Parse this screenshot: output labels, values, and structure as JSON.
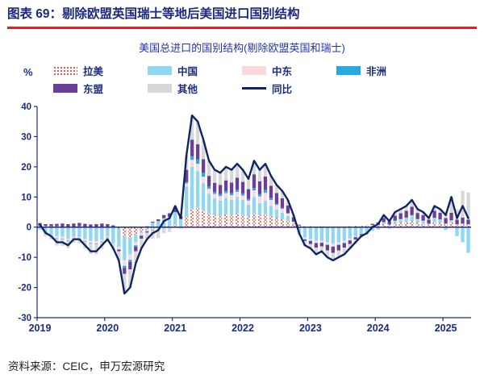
{
  "header": {
    "title": "图表 69：剔除欧盟英国瑞士等地后美国进口国别结构"
  },
  "footer": {
    "source": "资料来源：CEIC，申万宏源研究"
  },
  "colors": {
    "navy": "#1c2d7e",
    "header_navy": "#1b2a80",
    "title_blue": "#2333ae",
    "red_rule": "#ee1c25",
    "footer_text": "#1f1f1f",
    "line_navy": "#0f2464"
  },
  "chart_data": {
    "type": "bar",
    "subtype": "stacked-bar-with-line",
    "title": "美国总进口的国别结构(剔除欧盟英国和瑞士)",
    "ylabel": "%",
    "ylim": [
      -30,
      40
    ],
    "ytick_step": 10,
    "grid": false,
    "legend_position": "top",
    "x_start": "2019-01",
    "x_freq": "monthly",
    "x_ticks": {
      "labels": [
        "2019",
        "2020",
        "2021",
        "2022",
        "2023",
        "2024",
        "2025"
      ],
      "month_index": [
        0,
        12,
        24,
        36,
        48,
        60,
        72
      ]
    },
    "series": [
      {
        "name": "拉美",
        "color": "#e0564e",
        "pattern": "dots",
        "values": [
          0.5,
          0.4,
          0.3,
          0.3,
          0.2,
          0.1,
          0.2,
          0.3,
          0.2,
          0.1,
          0.1,
          0.2,
          0.2,
          0.1,
          -0.5,
          -3.0,
          -3.5,
          -2.5,
          -1.5,
          -1.0,
          -0.5,
          -0.3,
          0.2,
          0.4,
          0.8,
          0.2,
          3.5,
          6.0,
          6.5,
          5.5,
          4.5,
          4.0,
          3.8,
          4.2,
          4.0,
          4.5,
          4.0,
          3.5,
          4.5,
          4.0,
          4.3,
          3.5,
          3.0,
          2.6,
          2.2,
          1.3,
          0.5,
          0.3,
          0.3,
          0.2,
          0.3,
          0.1,
          0.0,
          0.1,
          0.2,
          0.3,
          0.4,
          0.5,
          0.6,
          0.7,
          0.7,
          1.0,
          0.8,
          1.2,
          1.4,
          1.6,
          2.0,
          1.4,
          1.2,
          0.8,
          1.6,
          1.4,
          1.0,
          1.5,
          0.8,
          1.0,
          0.8
        ]
      },
      {
        "name": "中国",
        "color": "#8fd7f3",
        "values": [
          -0.5,
          -2.0,
          -2.5,
          -3.0,
          -3.2,
          -3.8,
          -3.2,
          -3.4,
          -4.0,
          -4.5,
          -4.6,
          -4.2,
          -3.0,
          -5.5,
          -6.0,
          -8.0,
          -5.5,
          -2.5,
          -0.5,
          0.5,
          1.5,
          2.0,
          2.8,
          3.0,
          4.0,
          2.5,
          10.0,
          14.0,
          12.0,
          9.0,
          6.5,
          5.5,
          5.0,
          5.5,
          5.0,
          5.5,
          5.0,
          4.0,
          5.5,
          4.0,
          4.5,
          3.5,
          2.8,
          2.2,
          1.5,
          0.2,
          -2.0,
          -3.5,
          -4.0,
          -4.5,
          -4.5,
          -5.0,
          -5.5,
          -5.0,
          -4.5,
          -3.8,
          -3.0,
          -2.2,
          -1.8,
          -1.2,
          -0.8,
          0.5,
          -0.5,
          0.8,
          1.0,
          1.2,
          1.5,
          1.0,
          0.8,
          0.3,
          1.2,
          1.0,
          -1.0,
          0.5,
          -3.0,
          -5.0,
          -8.5
        ]
      },
      {
        "name": "中东",
        "color": "#f8dade",
        "values": [
          -0.2,
          -0.3,
          -0.4,
          -0.7,
          -0.6,
          -0.6,
          -0.5,
          -0.5,
          -0.6,
          -0.8,
          -0.9,
          -0.6,
          -0.3,
          -0.4,
          -0.8,
          -1.8,
          -1.8,
          -1.0,
          -0.7,
          -0.3,
          -0.3,
          -0.4,
          -0.2,
          -0.1,
          0.1,
          -0.1,
          1.0,
          2.3,
          2.5,
          2.2,
          1.7,
          1.5,
          1.5,
          1.6,
          1.6,
          1.7,
          1.5,
          1.3,
          2.2,
          2.2,
          2.6,
          2.0,
          1.6,
          1.3,
          0.8,
          0.3,
          -0.2,
          -0.5,
          -0.5,
          -0.7,
          -0.6,
          -0.8,
          -0.9,
          -0.8,
          -0.7,
          -0.5,
          -0.3,
          -0.1,
          -0.1,
          0.0,
          0.0,
          0.1,
          0.0,
          0.1,
          0.2,
          0.2,
          0.3,
          0.2,
          0.1,
          0.0,
          0.2,
          0.1,
          0.1,
          0.2,
          0.1,
          0.1,
          0.1
        ]
      },
      {
        "name": "非洲",
        "color": "#2aa9e1",
        "values": [
          -0.1,
          -0.1,
          -0.1,
          -0.2,
          -0.2,
          -0.2,
          -0.1,
          -0.1,
          -0.2,
          -0.2,
          -0.2,
          -0.2,
          -0.1,
          -0.1,
          -0.2,
          -0.7,
          -0.7,
          -0.5,
          -0.3,
          -0.2,
          -0.2,
          -0.1,
          -0.1,
          -0.1,
          0.1,
          0.0,
          0.5,
          1.2,
          1.5,
          1.3,
          0.8,
          0.7,
          0.7,
          0.7,
          0.7,
          0.7,
          0.7,
          0.5,
          0.8,
          0.8,
          0.9,
          0.7,
          0.4,
          0.3,
          0.2,
          0.0,
          0.0,
          -0.1,
          -0.1,
          -0.1,
          -0.1,
          -0.1,
          -0.1,
          -0.1,
          -0.1,
          -0.1,
          0.0,
          0.0,
          0.0,
          0.0,
          0.1,
          0.1,
          0.1,
          0.1,
          0.1,
          0.2,
          0.2,
          0.1,
          0.1,
          0.1,
          0.1,
          0.1,
          0.1,
          0.1,
          0.1,
          0.1,
          0.1
        ]
      },
      {
        "name": "东盟",
        "color": "#6b3f98",
        "values": [
          0.8,
          0.6,
          0.7,
          0.8,
          1.0,
          0.9,
          1.0,
          1.1,
          0.9,
          0.8,
          0.9,
          1.0,
          0.8,
          0.5,
          -0.5,
          -2.0,
          -2.5,
          -1.5,
          -0.8,
          -0.3,
          0.3,
          0.6,
          1.0,
          1.2,
          1.5,
          0.8,
          4.0,
          5.5,
          5.0,
          4.5,
          3.5,
          3.0,
          3.0,
          3.5,
          3.5,
          4.0,
          3.8,
          3.3,
          4.5,
          4.2,
          4.5,
          4.0,
          3.5,
          3.2,
          2.5,
          1.5,
          0.3,
          -0.5,
          -1.0,
          -1.5,
          -1.2,
          -1.8,
          -2.0,
          -1.8,
          -1.5,
          -1.2,
          -0.8,
          -0.4,
          0.0,
          0.4,
          0.8,
          1.3,
          1.0,
          1.6,
          1.9,
          2.2,
          2.8,
          2.0,
          1.8,
          1.3,
          2.3,
          2.2,
          1.8,
          2.5,
          1.5,
          2.0,
          1.5
        ]
      },
      {
        "name": "其他",
        "color": "#d8d8d8",
        "values": [
          0.4,
          -0.6,
          -1.0,
          -2.2,
          -2.2,
          -2.4,
          -1.4,
          -1.4,
          -2.3,
          -3.4,
          -3.3,
          -2.2,
          -1.6,
          -1.6,
          -3.0,
          -6.5,
          -6.0,
          -4.0,
          -3.2,
          -2.7,
          -2.8,
          -2.8,
          -1.7,
          -1.4,
          0.5,
          -0.4,
          5.0,
          8.0,
          7.5,
          6.5,
          5.0,
          4.3,
          4.0,
          4.5,
          4.2,
          4.6,
          4.0,
          3.4,
          4.5,
          3.8,
          4.2,
          3.3,
          2.7,
          2.4,
          1.8,
          0.7,
          -0.6,
          -1.7,
          -1.7,
          -2.4,
          -1.9,
          -2.4,
          -2.5,
          -2.4,
          -2.4,
          -1.7,
          -1.3,
          -0.8,
          -0.7,
          0.1,
          0.2,
          1.0,
          0.6,
          1.2,
          1.4,
          1.6,
          2.2,
          1.3,
          1.0,
          0.5,
          1.6,
          1.2,
          2.0,
          5.2,
          3.5,
          8.8,
          9.0
        ]
      }
    ],
    "line": {
      "name": "同比",
      "color": "#0f2464",
      "values": [
        0.9,
        -1.9,
        -3.0,
        -5.0,
        -5.0,
        -6.0,
        -4.0,
        -4.0,
        -6.0,
        -8.0,
        -8.0,
        -6.0,
        -4.0,
        -7.0,
        -11.0,
        -22.0,
        -20.0,
        -12.0,
        -7.0,
        -4.0,
        -2.0,
        -1.0,
        2.0,
        3.0,
        7.0,
        3.0,
        24.0,
        37.0,
        35.0,
        29.0,
        22.0,
        19.0,
        18.0,
        20.0,
        19.0,
        21.0,
        19.0,
        16.0,
        22.0,
        19.0,
        21.0,
        17.0,
        14.0,
        12.0,
        9.0,
        4.0,
        -2.0,
        -6.0,
        -7.0,
        -9.0,
        -8.0,
        -10.0,
        -11.0,
        -10.0,
        -9.0,
        -7.0,
        -5.0,
        -3.0,
        -2.0,
        0.0,
        1.0,
        4.0,
        2.0,
        5.0,
        6.0,
        7.0,
        9.0,
        6.0,
        5.0,
        3.0,
        7.0,
        6.0,
        4.0,
        10.0,
        3.0,
        7.0,
        3.0
      ]
    }
  }
}
